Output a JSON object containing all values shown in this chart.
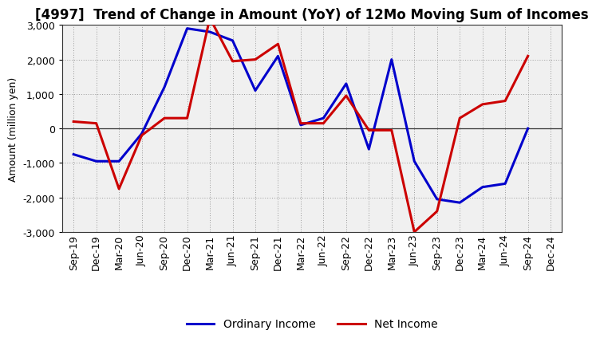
{
  "title": "[4997]  Trend of Change in Amount (YoY) of 12Mo Moving Sum of Incomes",
  "ylabel": "Amount (million yen)",
  "xlabels": [
    "Sep-19",
    "Dec-19",
    "Mar-20",
    "Jun-20",
    "Sep-20",
    "Dec-20",
    "Mar-21",
    "Jun-21",
    "Sep-21",
    "Dec-21",
    "Mar-22",
    "Jun-22",
    "Sep-22",
    "Dec-22",
    "Mar-23",
    "Jun-23",
    "Sep-23",
    "Dec-23",
    "Mar-24",
    "Jun-24",
    "Sep-24",
    "Dec-24"
  ],
  "ordinary_income": [
    -750,
    -950,
    -950,
    -150,
    1200,
    2900,
    2800,
    2550,
    1100,
    2100,
    100,
    300,
    1300,
    -600,
    2000,
    -950,
    -2050,
    -2150,
    -1700,
    -1600,
    0,
    null
  ],
  "net_income": [
    200,
    150,
    -1750,
    -200,
    300,
    300,
    3200,
    1950,
    2000,
    2450,
    150,
    150,
    950,
    -50,
    -50,
    -3000,
    -2400,
    300,
    700,
    800,
    2100,
    null
  ],
  "ordinary_income_color": "#0000cc",
  "net_income_color": "#cc0000",
  "ylim": [
    -3000,
    3000
  ],
  "yticks": [
    -3000,
    -2000,
    -1000,
    0,
    1000,
    2000,
    3000
  ],
  "plot_bg_color": "#f0f0f0",
  "fig_bg_color": "#ffffff",
  "grid_color": "#999999",
  "linewidth": 2.2,
  "title_fontsize": 12,
  "axis_fontsize": 9,
  "tick_fontsize": 9,
  "legend_fontsize": 10
}
